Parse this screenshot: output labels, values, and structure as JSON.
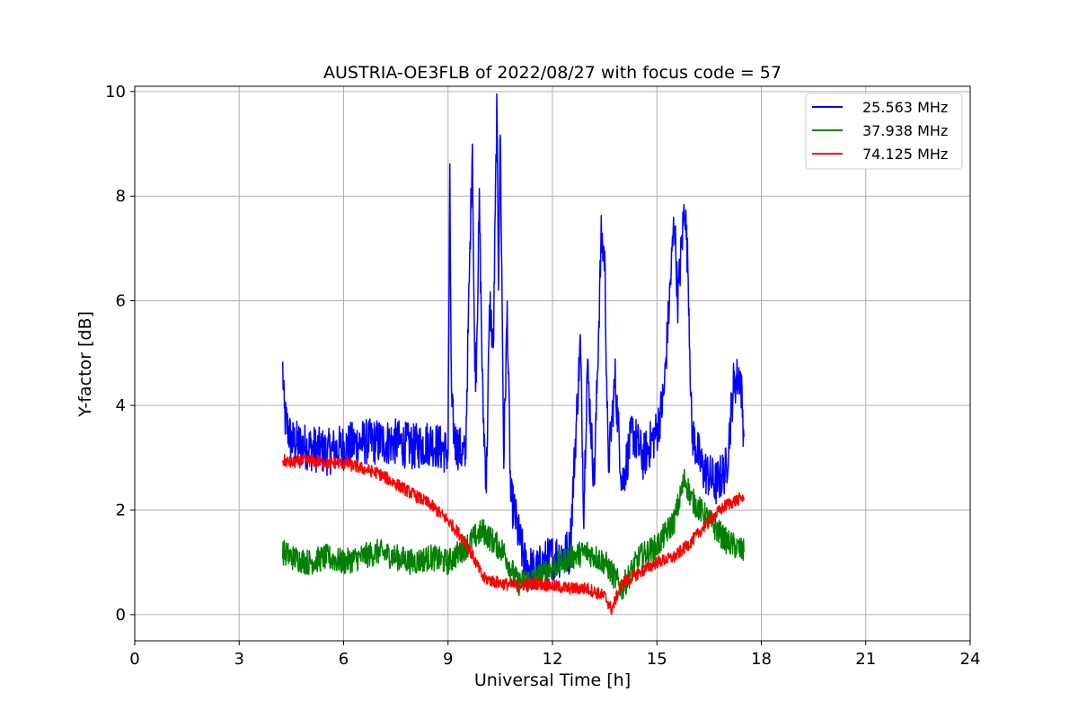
{
  "chart_data": {
    "type": "line",
    "title": "AUSTRIA-OE3FLB of 2022/08/27 with focus code = 57",
    "xlabel": "Universal Time [h]",
    "ylabel": "Y-factor [dB]",
    "xlim": [
      0,
      24
    ],
    "ylim": [
      -0.5,
      10.1
    ],
    "xticks": [
      0,
      3,
      6,
      9,
      12,
      15,
      18,
      21,
      24
    ],
    "yticks": [
      0,
      2,
      4,
      6,
      8,
      10
    ],
    "grid": true,
    "legend_position": "top-right",
    "series": [
      {
        "name": "25.563 MHz",
        "color": "#0000ff",
        "x": [
          4.25,
          4.3,
          4.5,
          5.0,
          5.5,
          6.0,
          6.5,
          7.0,
          7.5,
          8.0,
          8.5,
          9.0,
          9.05,
          9.1,
          9.2,
          9.5,
          9.7,
          9.75,
          9.8,
          9.9,
          10.0,
          10.1,
          10.2,
          10.3,
          10.4,
          10.45,
          10.5,
          10.6,
          10.7,
          10.8,
          10.9,
          11.0,
          11.2,
          11.5,
          11.8,
          12.0,
          12.5,
          12.8,
          12.9,
          13.0,
          13.2,
          13.4,
          13.5,
          13.6,
          13.8,
          14.0,
          14.3,
          14.6,
          15.0,
          15.2,
          15.5,
          15.6,
          15.8,
          15.9,
          16.0,
          16.3,
          16.7,
          17.0,
          17.2,
          17.4,
          17.5
        ],
        "values": [
          4.7,
          3.8,
          3.3,
          3.2,
          3.1,
          3.2,
          3.3,
          3.3,
          3.3,
          3.2,
          3.3,
          3.1,
          8.2,
          4.0,
          3.3,
          3.0,
          9.1,
          5.5,
          4.5,
          7.8,
          4.0,
          2.5,
          6.0,
          5.0,
          9.6,
          6.5,
          9.3,
          3.0,
          5.8,
          2.2,
          2.0,
          1.6,
          1.0,
          0.8,
          1.0,
          1.1,
          1.2,
          5.2,
          2.0,
          4.8,
          2.5,
          7.2,
          6.8,
          2.8,
          4.5,
          2.5,
          3.5,
          3.0,
          3.5,
          4.2,
          7.6,
          6.0,
          7.9,
          6.5,
          3.5,
          2.8,
          2.5,
          2.8,
          4.4,
          4.6,
          3.4
        ]
      },
      {
        "name": "37.938 MHz",
        "color": "#008000",
        "x": [
          4.25,
          4.5,
          5.0,
          5.5,
          6.0,
          6.5,
          7.0,
          7.5,
          8.0,
          8.5,
          9.0,
          9.5,
          9.8,
          10.0,
          10.3,
          10.6,
          11.0,
          11.5,
          12.0,
          12.5,
          13.0,
          13.5,
          14.0,
          14.5,
          15.0,
          15.5,
          15.8,
          16.0,
          16.5,
          17.0,
          17.5
        ],
        "values": [
          1.2,
          1.1,
          1.0,
          1.1,
          1.0,
          1.1,
          1.2,
          1.1,
          1.0,
          1.1,
          1.0,
          1.3,
          1.5,
          1.6,
          1.4,
          1.2,
          0.6,
          0.7,
          0.9,
          1.1,
          1.2,
          1.0,
          0.5,
          1.1,
          1.3,
          1.8,
          2.6,
          2.2,
          1.8,
          1.4,
          1.2
        ]
      },
      {
        "name": "74.125 MHz",
        "color": "#ff0000",
        "x": [
          4.25,
          4.5,
          5.0,
          5.5,
          6.0,
          6.5,
          7.0,
          7.5,
          8.0,
          8.5,
          9.0,
          9.5,
          9.8,
          10.0,
          10.5,
          11.0,
          11.5,
          12.0,
          12.5,
          13.0,
          13.5,
          13.7,
          14.0,
          14.5,
          15.0,
          15.5,
          16.0,
          16.5,
          17.0,
          17.5
        ],
        "values": [
          2.95,
          2.9,
          2.95,
          2.9,
          2.9,
          2.8,
          2.7,
          2.5,
          2.3,
          2.1,
          1.8,
          1.4,
          1.0,
          0.7,
          0.6,
          0.55,
          0.6,
          0.55,
          0.5,
          0.5,
          0.35,
          0.1,
          0.6,
          0.8,
          1.0,
          1.1,
          1.4,
          1.8,
          2.1,
          2.25
        ]
      }
    ]
  }
}
